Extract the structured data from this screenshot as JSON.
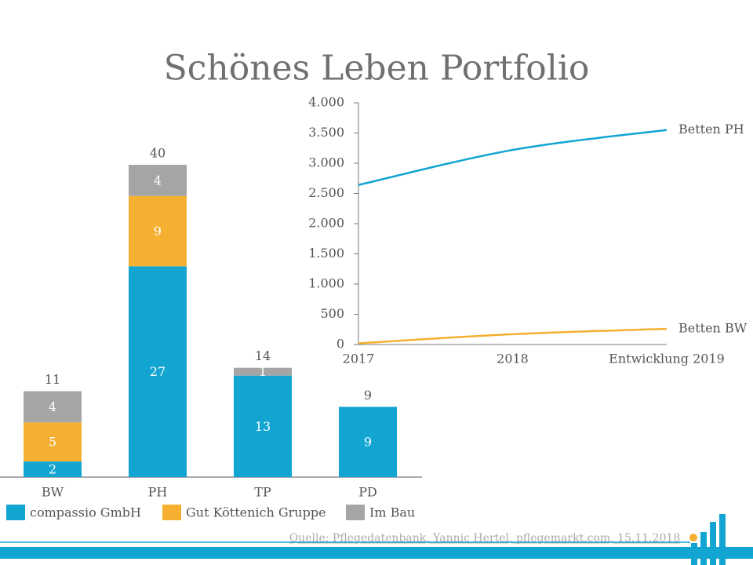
{
  "title": "Schönes Leben Portfolio",
  "source": "Quelle: Pflegedatenbank, Yannic Hertel, pflegemarkt.com, 15.11.2018",
  "chart_data": [
    {
      "type": "stacked_bar",
      "categories": [
        "BW",
        "PH",
        "TP",
        "PD"
      ],
      "series": [
        {
          "name": "compassio GmbH",
          "color": "#12a5d1",
          "values": [
            2,
            27,
            13,
            9
          ]
        },
        {
          "name": "Gut Köttenich Gruppe",
          "color": "#f5b031",
          "values": [
            5,
            9,
            null,
            null
          ]
        },
        {
          "name": "Im Bau",
          "color": "#a5a5a5",
          "values": [
            4,
            4,
            1,
            null
          ]
        }
      ],
      "totals": [
        11,
        40,
        14,
        9
      ],
      "legend": "bottom"
    },
    {
      "type": "line",
      "categories": [
        "2017",
        "2018",
        "Entwicklung 2019"
      ],
      "series": [
        {
          "name": "Betten PH",
          "color": "#12a5d1",
          "values": [
            2640,
            3220,
            3550
          ]
        },
        {
          "name": "Betten BW",
          "color": "#f5b031",
          "values": [
            20,
            170,
            260
          ]
        }
      ],
      "ylim": [
        0,
        4000
      ],
      "yticks": [
        0,
        500,
        {
          "value": 1000,
          "label": "1.000"
        },
        {
          "value": 1500,
          "label": "1.500"
        },
        {
          "value": 2000,
          "label": "2.000"
        },
        {
          "value": 2500,
          "label": "2.500"
        },
        {
          "value": 3000,
          "label": "3.000"
        },
        {
          "value": 3500,
          "label": "3.500"
        },
        {
          "value": 4000,
          "label": "4.000"
        }
      ]
    }
  ]
}
